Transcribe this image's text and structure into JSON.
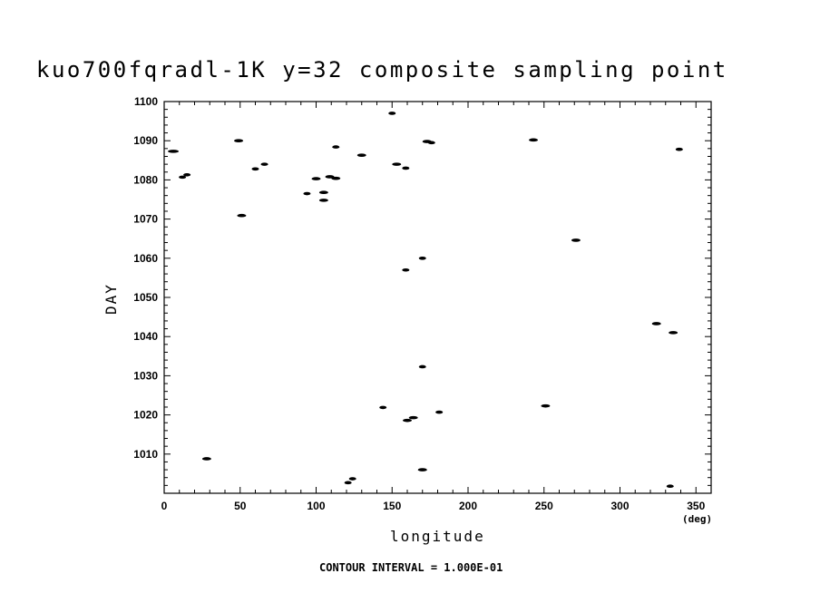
{
  "chart_data": {
    "type": "scatter",
    "title": "kuo700fqradl-1K y=32 composite sampling point",
    "xlabel": "longitude",
    "xunit": "(deg)",
    "ylabel": "DAY",
    "xlim": [
      0,
      360
    ],
    "ylim": [
      1000,
      1100
    ],
    "xticks": [
      0,
      50,
      100,
      150,
      200,
      250,
      300,
      350
    ],
    "yticks": [
      1010,
      1020,
      1030,
      1040,
      1050,
      1060,
      1070,
      1080,
      1090,
      1100
    ],
    "grid": false,
    "footer": "CONTOUR INTERVAL = 1.000E-01",
    "points": [
      {
        "x": 6,
        "y": 1087.3,
        "w": 6
      },
      {
        "x": 12,
        "y": 1080.7,
        "w": 4
      },
      {
        "x": 15,
        "y": 1081.3,
        "w": 4
      },
      {
        "x": 28,
        "y": 1008.8,
        "w": 5
      },
      {
        "x": 49,
        "y": 1090.0,
        "w": 5
      },
      {
        "x": 51,
        "y": 1070.9,
        "w": 5
      },
      {
        "x": 60,
        "y": 1082.8,
        "w": 4
      },
      {
        "x": 66,
        "y": 1084.0,
        "w": 4
      },
      {
        "x": 94,
        "y": 1076.5,
        "w": 4
      },
      {
        "x": 100,
        "y": 1080.3,
        "w": 5
      },
      {
        "x": 105,
        "y": 1076.8,
        "w": 5
      },
      {
        "x": 105,
        "y": 1074.8,
        "w": 5
      },
      {
        "x": 109,
        "y": 1080.8,
        "w": 5
      },
      {
        "x": 113,
        "y": 1080.4,
        "w": 5
      },
      {
        "x": 113,
        "y": 1088.4,
        "w": 4
      },
      {
        "x": 121,
        "y": 1002.7,
        "w": 4
      },
      {
        "x": 124,
        "y": 1003.7,
        "w": 4
      },
      {
        "x": 130,
        "y": 1086.3,
        "w": 5
      },
      {
        "x": 144,
        "y": 1021.9,
        "w": 4
      },
      {
        "x": 150,
        "y": 1097.0,
        "w": 4
      },
      {
        "x": 153,
        "y": 1084.0,
        "w": 5
      },
      {
        "x": 159,
        "y": 1083.0,
        "w": 4
      },
      {
        "x": 159,
        "y": 1057.0,
        "w": 4
      },
      {
        "x": 160,
        "y": 1018.6,
        "w": 5
      },
      {
        "x": 164,
        "y": 1019.3,
        "w": 5
      },
      {
        "x": 170,
        "y": 1060.0,
        "w": 4
      },
      {
        "x": 170,
        "y": 1032.3,
        "w": 4
      },
      {
        "x": 170,
        "y": 1006.0,
        "w": 5
      },
      {
        "x": 173,
        "y": 1089.8,
        "w": 5
      },
      {
        "x": 176,
        "y": 1089.5,
        "w": 4
      },
      {
        "x": 181,
        "y": 1020.7,
        "w": 4
      },
      {
        "x": 243,
        "y": 1090.2,
        "w": 5
      },
      {
        "x": 251,
        "y": 1022.3,
        "w": 5
      },
      {
        "x": 271,
        "y": 1064.6,
        "w": 5
      },
      {
        "x": 324,
        "y": 1043.3,
        "w": 5
      },
      {
        "x": 333,
        "y": 1001.8,
        "w": 4
      },
      {
        "x": 335,
        "y": 1041.0,
        "w": 5
      },
      {
        "x": 339,
        "y": 1087.8,
        "w": 4
      }
    ]
  }
}
